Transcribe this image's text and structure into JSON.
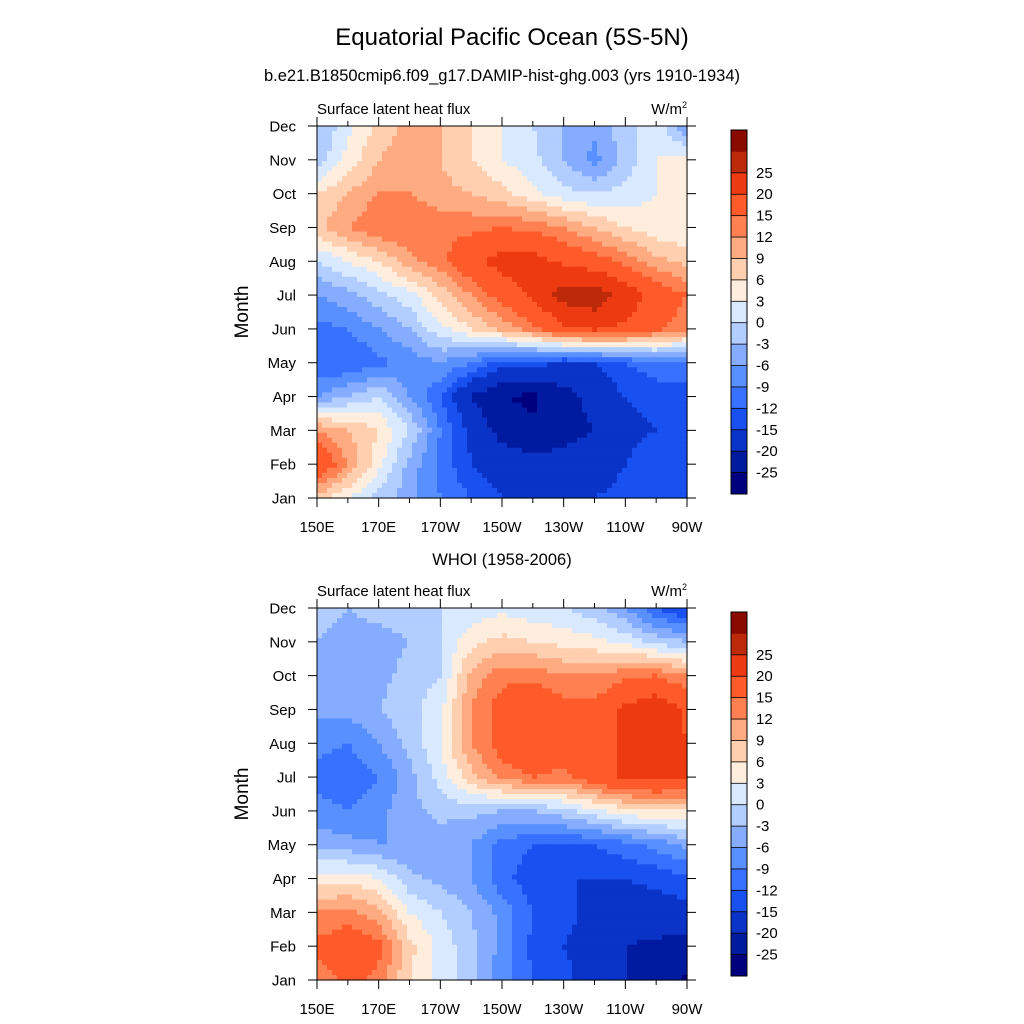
{
  "figure": {
    "title": "Equatorial Pacific Ocean (5S-5N)",
    "subtitle": "b.e21.B1850cmip6.f09_g17.DAMIP-hist-ghg.003 (yrs 1910-1934)",
    "second_panel_title": "WHOI (1958-2006)"
  },
  "chart_data": [
    {
      "type": "heatmap",
      "title": "b.e21.B1850cmip6.f09_g17.DAMIP-hist-ghg.003 (yrs 1910-1934)",
      "left_label": "Surface latent heat flux",
      "units": "W/m²",
      "ylabel": "Month",
      "xlabel": "",
      "x_ticks": [
        "150E",
        "170E",
        "170W",
        "150W",
        "130W",
        "110W",
        "90W"
      ],
      "y_ticks": [
        "Jan",
        "Feb",
        "Mar",
        "Apr",
        "May",
        "Jun",
        "Jul",
        "Aug",
        "Sep",
        "Oct",
        "Nov",
        "Dec"
      ],
      "x_values_lon_east": [
        150,
        160,
        170,
        180,
        190,
        200,
        210,
        220,
        230,
        240,
        250,
        260,
        270
      ],
      "values": [
        [
          8,
          3,
          -1,
          -5,
          -9,
          -12,
          -15,
          -15,
          -16,
          -15,
          -14,
          -12,
          -12
        ],
        [
          20,
          12,
          4,
          -4,
          -10,
          -15,
          -17,
          -18,
          -18,
          -17,
          -15,
          -13,
          -12
        ],
        [
          12,
          9,
          6,
          0,
          -9,
          -16,
          -22,
          -24,
          -22,
          -20,
          -16,
          -15,
          -14
        ],
        [
          -6,
          -3,
          0,
          -6,
          -12,
          -20,
          -25,
          -26,
          -22,
          -18,
          -15,
          -14,
          -13
        ],
        [
          -12,
          -12,
          -10,
          -8,
          -6,
          -9,
          -13,
          -14,
          -15,
          -15,
          -12,
          -10,
          -10
        ],
        [
          -10,
          -9,
          -6,
          -3,
          2,
          6,
          10,
          14,
          19,
          21,
          19,
          16,
          13
        ],
        [
          -6,
          -4,
          -1,
          2,
          7,
          12,
          17,
          21,
          27,
          28,
          23,
          18,
          15
        ],
        [
          0,
          3,
          6,
          11,
          14,
          19,
          22,
          22,
          19,
          17,
          14,
          10,
          8
        ],
        [
          8,
          12,
          15,
          15,
          14,
          14,
          15,
          14,
          12,
          9,
          6,
          4,
          3
        ],
        [
          6,
          9,
          12,
          12,
          10,
          9,
          7,
          4,
          1,
          0,
          1,
          3,
          4
        ],
        [
          -2,
          4,
          9,
          11,
          9,
          6,
          3,
          1,
          -3,
          -7,
          -2,
          3,
          4
        ],
        [
          -3,
          2,
          7,
          10,
          9,
          6,
          3,
          0,
          -3,
          -5,
          -1,
          2,
          -6
        ]
      ],
      "zlim": [
        -30,
        30
      ],
      "colorbar_levels": [
        -25,
        -20,
        -15,
        -12,
        -9,
        -6,
        -3,
        0,
        3,
        6,
        9,
        12,
        15,
        20,
        25
      ],
      "colorbar_colors": [
        "#00007f",
        "#001aa0",
        "#0a33c8",
        "#1950f0",
        "#3870ff",
        "#5890ff",
        "#86acff",
        "#b2cdff",
        "#d9e9ff",
        "#ffeedd",
        "#ffcfb0",
        "#ffab82",
        "#ff8050",
        "#ff5a2a",
        "#ee3a10",
        "#bd2a0a",
        "#8a0a00"
      ]
    },
    {
      "type": "heatmap",
      "title": "WHOI (1958-2006)",
      "left_label": "Surface latent heat flux",
      "units": "W/m²",
      "ylabel": "Month",
      "xlabel": "",
      "x_ticks": [
        "150E",
        "170E",
        "170W",
        "150W",
        "130W",
        "110W",
        "90W"
      ],
      "y_ticks": [
        "Jan",
        "Feb",
        "Mar",
        "Apr",
        "May",
        "Jun",
        "Jul",
        "Aug",
        "Sep",
        "Oct",
        "Nov",
        "Dec"
      ],
      "x_values_lon_east": [
        150,
        160,
        170,
        180,
        190,
        200,
        210,
        220,
        230,
        240,
        250,
        260,
        270
      ],
      "values": [
        [
          13,
          16,
          14,
          6,
          2,
          -2,
          -8,
          -12,
          -14,
          -17,
          -20,
          -22,
          -26
        ],
        [
          16,
          18,
          16,
          7,
          2,
          -2,
          -7,
          -13,
          -15,
          -17,
          -20,
          -21,
          -22
        ],
        [
          12,
          13,
          10,
          3,
          0,
          -3,
          -7,
          -12,
          -14,
          -16,
          -17,
          -17,
          -16
        ],
        [
          4,
          5,
          3,
          -2,
          -4,
          -6,
          -11,
          -14,
          -15,
          -15,
          -15,
          -14,
          -13
        ],
        [
          -4,
          -5,
          -6,
          -6,
          -5,
          -6,
          -10,
          -12,
          -12,
          -12,
          -10,
          -8,
          -5
        ],
        [
          -8,
          -9,
          -7,
          -4,
          -2,
          -2,
          -3,
          -3,
          -1,
          2,
          5,
          6,
          6
        ],
        [
          -10,
          -11,
          -9,
          -4,
          1,
          8,
          13,
          15,
          14,
          18,
          21,
          22,
          20
        ],
        [
          -8,
          -9,
          -6,
          -2,
          3,
          12,
          17,
          20,
          17,
          18,
          21,
          23,
          20
        ],
        [
          -5,
          -5,
          -3,
          -1,
          2,
          12,
          17,
          19,
          17,
          16,
          21,
          24,
          19
        ],
        [
          -4,
          -5,
          -4,
          -2,
          0,
          10,
          14,
          14,
          12,
          12,
          14,
          15,
          12
        ],
        [
          -3,
          -4,
          -4,
          -3,
          0,
          5,
          7,
          6,
          5,
          4,
          2,
          -1,
          -3
        ],
        [
          -2,
          -3,
          -2,
          -2,
          0,
          1,
          2,
          1,
          0,
          -2,
          -6,
          -12,
          -16
        ]
      ],
      "zlim": [
        -30,
        30
      ],
      "colorbar_levels": [
        -25,
        -20,
        -15,
        -12,
        -9,
        -6,
        -3,
        0,
        3,
        6,
        9,
        12,
        15,
        20,
        25
      ],
      "colorbar_colors": [
        "#00007f",
        "#001aa0",
        "#0a33c8",
        "#1950f0",
        "#3870ff",
        "#5890ff",
        "#86acff",
        "#b2cdff",
        "#d9e9ff",
        "#ffeedd",
        "#ffcfb0",
        "#ffab82",
        "#ff8050",
        "#ff5a2a",
        "#ee3a10",
        "#bd2a0a",
        "#8a0a00"
      ]
    }
  ]
}
